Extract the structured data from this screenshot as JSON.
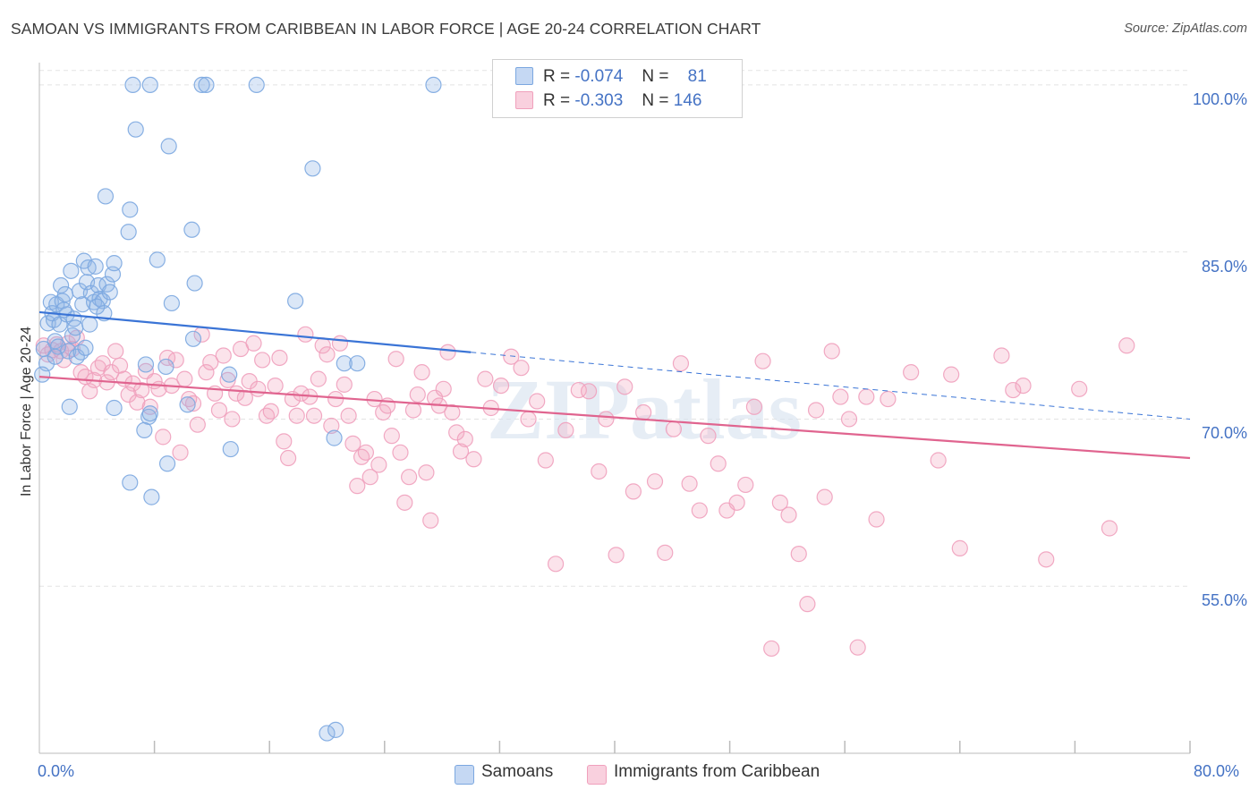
{
  "chart_data": {
    "type": "scatter",
    "title": "SAMOAN VS IMMIGRANTS FROM CARIBBEAN IN LABOR FORCE | AGE 20-24 CORRELATION CHART",
    "source": "Source: ZipAtlas.com",
    "xlabel": "",
    "ylabel": "In Labor Force | Age 20-24",
    "xlim": [
      0,
      80
    ],
    "ylim": [
      40,
      102
    ],
    "x_tick_labels": [
      "0.0%",
      "80.0%"
    ],
    "y_ticks": [
      55,
      70,
      85,
      100
    ],
    "y_tick_labels": [
      "55.0%",
      "70.0%",
      "85.0%",
      "100.0%"
    ],
    "watermark": "ZIPatlas",
    "legend": {
      "rows": [
        {
          "r_label": "R =",
          "r_value": "-0.074",
          "n_label": "N =",
          "n_value": "81"
        },
        {
          "r_label": "R =",
          "r_value": "-0.303",
          "n_label": "N = ",
          "n_value": "146"
        }
      ]
    },
    "series": [
      {
        "name": "Samoans",
        "color": "#7ba7e0",
        "line_color": "#3a74d6",
        "trend": {
          "x0": 0,
          "y0": 79.6,
          "x1": 30,
          "y1": 76.0,
          "dash_x1": 80,
          "dash_y1": 70.0
        },
        "points": [
          [
            0.3,
            76.3
          ],
          [
            0.5,
            75.0
          ],
          [
            0.6,
            78.6
          ],
          [
            0.8,
            80.5
          ],
          [
            0.9,
            79.5
          ],
          [
            1.0,
            78.9
          ],
          [
            1.1,
            77.0
          ],
          [
            1.2,
            80.3
          ],
          [
            1.3,
            76.5
          ],
          [
            1.4,
            78.5
          ],
          [
            1.5,
            82.0
          ],
          [
            1.6,
            80.6
          ],
          [
            1.8,
            81.2
          ],
          [
            1.9,
            79.4
          ],
          [
            2.0,
            76.1
          ],
          [
            2.2,
            83.3
          ],
          [
            2.3,
            77.5
          ],
          [
            2.4,
            79.0
          ],
          [
            2.5,
            78.2
          ],
          [
            2.6,
            75.6
          ],
          [
            2.8,
            81.5
          ],
          [
            3.0,
            80.3
          ],
          [
            3.1,
            84.2
          ],
          [
            3.3,
            82.3
          ],
          [
            3.4,
            83.6
          ],
          [
            3.6,
            81.3
          ],
          [
            3.8,
            80.5
          ],
          [
            3.9,
            83.7
          ],
          [
            4.1,
            82.0
          ],
          [
            4.2,
            80.8
          ],
          [
            4.4,
            80.6
          ],
          [
            4.5,
            79.5
          ],
          [
            4.7,
            82.1
          ],
          [
            4.9,
            81.4
          ],
          [
            5.1,
            83.0
          ],
          [
            2.9,
            76.0
          ],
          [
            3.2,
            76.4
          ],
          [
            3.5,
            78.5
          ],
          [
            2.1,
            71.1
          ],
          [
            1.1,
            75.6
          ],
          [
            6.5,
            100.0
          ],
          [
            7.7,
            100.0
          ],
          [
            11.3,
            100.0
          ],
          [
            11.6,
            100.0
          ],
          [
            15.1,
            100.0
          ],
          [
            27.4,
            100.0
          ],
          [
            6.7,
            96.0
          ],
          [
            9.0,
            94.5
          ],
          [
            19.0,
            92.5
          ],
          [
            4.6,
            90.0
          ],
          [
            6.3,
            88.8
          ],
          [
            10.6,
            87.0
          ],
          [
            6.2,
            86.8
          ],
          [
            5.2,
            84.0
          ],
          [
            8.2,
            84.3
          ],
          [
            10.8,
            82.2
          ],
          [
            9.2,
            80.4
          ],
          [
            17.8,
            80.6
          ],
          [
            10.7,
            77.2
          ],
          [
            8.8,
            74.7
          ],
          [
            13.2,
            74.0
          ],
          [
            7.4,
            74.9
          ],
          [
            10.3,
            71.3
          ],
          [
            5.2,
            71.0
          ],
          [
            7.6,
            70.2
          ],
          [
            7.3,
            69.0
          ],
          [
            8.9,
            66.0
          ],
          [
            13.3,
            67.3
          ],
          [
            20.5,
            68.3
          ],
          [
            6.3,
            64.3
          ],
          [
            7.8,
            63.0
          ],
          [
            21.2,
            75.0
          ],
          [
            22.1,
            75.0
          ],
          [
            20.0,
            41.8
          ],
          [
            20.6,
            42.1
          ],
          [
            4.0,
            80.1
          ],
          [
            0.2,
            74.0
          ],
          [
            1.7,
            79.8
          ],
          [
            7.7,
            70.5
          ]
        ]
      },
      {
        "name": "Immigrants from Caribbean",
        "color": "#f0a0bc",
        "line_color": "#e0648f",
        "trend": {
          "x0": 0,
          "y0": 73.8,
          "x1": 80,
          "y1": 66.5
        },
        "points": [
          [
            0.3,
            76.6
          ],
          [
            0.6,
            75.8
          ],
          [
            0.9,
            76.2
          ],
          [
            1.2,
            76.7
          ],
          [
            1.5,
            76.1
          ],
          [
            1.7,
            75.3
          ],
          [
            2.0,
            76.8
          ],
          [
            2.3,
            76.3
          ],
          [
            2.6,
            77.3
          ],
          [
            2.9,
            74.2
          ],
          [
            3.2,
            73.8
          ],
          [
            3.5,
            72.5
          ],
          [
            3.8,
            73.5
          ],
          [
            4.1,
            74.6
          ],
          [
            4.4,
            75.0
          ],
          [
            4.7,
            73.3
          ],
          [
            5.0,
            74.2
          ],
          [
            5.3,
            76.1
          ],
          [
            5.6,
            74.8
          ],
          [
            5.9,
            73.6
          ],
          [
            6.2,
            72.2
          ],
          [
            6.5,
            73.2
          ],
          [
            6.8,
            71.5
          ],
          [
            7.1,
            72.6
          ],
          [
            7.4,
            74.3
          ],
          [
            7.7,
            71.1
          ],
          [
            8.0,
            73.4
          ],
          [
            8.3,
            72.7
          ],
          [
            8.6,
            68.4
          ],
          [
            8.9,
            75.5
          ],
          [
            9.2,
            73.0
          ],
          [
            9.5,
            75.3
          ],
          [
            9.8,
            67.0
          ],
          [
            10.1,
            73.6
          ],
          [
            10.4,
            71.8
          ],
          [
            10.7,
            71.4
          ],
          [
            11.0,
            69.5
          ],
          [
            11.3,
            77.6
          ],
          [
            11.6,
            74.2
          ],
          [
            11.9,
            75.1
          ],
          [
            12.2,
            72.3
          ],
          [
            12.5,
            70.8
          ],
          [
            12.8,
            75.7
          ],
          [
            13.1,
            73.5
          ],
          [
            13.4,
            70.0
          ],
          [
            13.7,
            72.3
          ],
          [
            14.0,
            76.3
          ],
          [
            14.3,
            71.9
          ],
          [
            14.6,
            73.4
          ],
          [
            14.9,
            76.8
          ],
          [
            15.2,
            72.7
          ],
          [
            15.5,
            75.3
          ],
          [
            15.8,
            70.3
          ],
          [
            16.1,
            70.7
          ],
          [
            16.4,
            73.0
          ],
          [
            16.7,
            75.5
          ],
          [
            17.0,
            68.0
          ],
          [
            17.3,
            66.5
          ],
          [
            17.6,
            71.8
          ],
          [
            17.9,
            70.3
          ],
          [
            18.2,
            72.3
          ],
          [
            18.5,
            77.6
          ],
          [
            18.8,
            72.0
          ],
          [
            19.1,
            70.3
          ],
          [
            19.4,
            73.6
          ],
          [
            19.7,
            76.6
          ],
          [
            20.0,
            75.8
          ],
          [
            20.3,
            69.4
          ],
          [
            20.6,
            71.8
          ],
          [
            20.9,
            76.8
          ],
          [
            21.2,
            73.1
          ],
          [
            21.5,
            70.3
          ],
          [
            21.8,
            67.8
          ],
          [
            22.1,
            64.0
          ],
          [
            22.4,
            66.6
          ],
          [
            22.7,
            67.0
          ],
          [
            23.0,
            64.8
          ],
          [
            23.3,
            71.8
          ],
          [
            23.6,
            65.9
          ],
          [
            23.9,
            70.6
          ],
          [
            24.2,
            71.2
          ],
          [
            24.5,
            68.5
          ],
          [
            24.8,
            75.4
          ],
          [
            25.1,
            67.0
          ],
          [
            25.4,
            62.5
          ],
          [
            25.7,
            64.8
          ],
          [
            26.0,
            70.8
          ],
          [
            26.3,
            72.2
          ],
          [
            26.6,
            74.2
          ],
          [
            26.9,
            65.2
          ],
          [
            27.2,
            60.9
          ],
          [
            27.5,
            71.9
          ],
          [
            27.8,
            71.2
          ],
          [
            28.1,
            72.7
          ],
          [
            28.4,
            76.0
          ],
          [
            28.7,
            70.6
          ],
          [
            29.0,
            68.8
          ],
          [
            29.3,
            67.1
          ],
          [
            29.6,
            68.2
          ],
          [
            30.2,
            66.4
          ],
          [
            31.0,
            73.6
          ],
          [
            31.4,
            71.0
          ],
          [
            32.1,
            73.0
          ],
          [
            32.8,
            75.6
          ],
          [
            33.5,
            74.6
          ],
          [
            34.0,
            70.0
          ],
          [
            34.6,
            71.6
          ],
          [
            35.2,
            66.3
          ],
          [
            35.9,
            57.0
          ],
          [
            36.6,
            69.0
          ],
          [
            37.5,
            72.6
          ],
          [
            38.2,
            72.5
          ],
          [
            38.9,
            65.3
          ],
          [
            39.4,
            70.0
          ],
          [
            40.1,
            57.8
          ],
          [
            40.7,
            72.9
          ],
          [
            41.3,
            63.5
          ],
          [
            42.0,
            70.6
          ],
          [
            42.8,
            64.4
          ],
          [
            43.5,
            58.0
          ],
          [
            44.1,
            69.1
          ],
          [
            44.6,
            75.0
          ],
          [
            45.2,
            64.2
          ],
          [
            45.9,
            61.8
          ],
          [
            46.5,
            68.5
          ],
          [
            47.2,
            66.0
          ],
          [
            47.8,
            61.8
          ],
          [
            48.5,
            62.5
          ],
          [
            49.1,
            64.1
          ],
          [
            49.7,
            71.1
          ],
          [
            50.3,
            75.2
          ],
          [
            50.9,
            49.4
          ],
          [
            51.5,
            62.5
          ],
          [
            52.1,
            61.4
          ],
          [
            52.8,
            57.9
          ],
          [
            53.4,
            53.4
          ],
          [
            54.0,
            70.8
          ],
          [
            54.6,
            63.0
          ],
          [
            55.1,
            76.1
          ],
          [
            55.7,
            72.0
          ],
          [
            56.3,
            70.0
          ],
          [
            56.9,
            49.5
          ],
          [
            57.5,
            72.0
          ],
          [
            58.2,
            61.0
          ],
          [
            59.0,
            71.8
          ],
          [
            60.6,
            74.2
          ],
          [
            62.5,
            66.3
          ],
          [
            63.4,
            74.0
          ],
          [
            64.0,
            58.4
          ],
          [
            66.9,
            75.7
          ],
          [
            67.7,
            72.6
          ],
          [
            68.4,
            73.0
          ],
          [
            70.0,
            57.4
          ],
          [
            72.3,
            72.7
          ],
          [
            74.4,
            60.2
          ],
          [
            75.6,
            76.6
          ]
        ]
      }
    ]
  }
}
